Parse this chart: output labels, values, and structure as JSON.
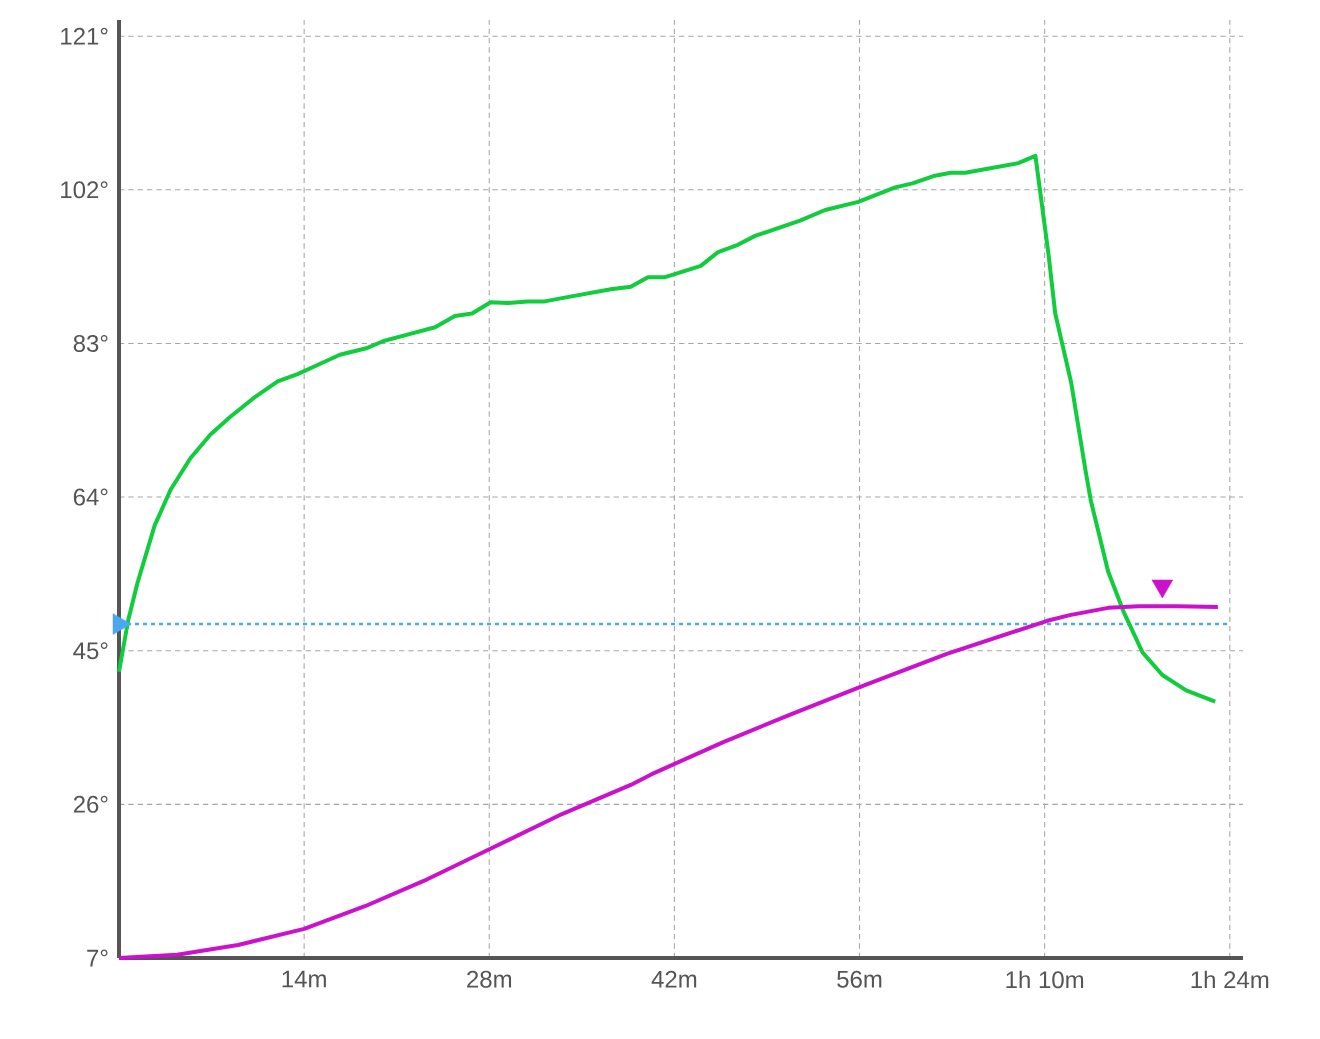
{
  "chart_data": {
    "type": "line",
    "x": [
      0,
      0.7,
      1.4,
      2.7,
      3.9,
      5.4,
      6.9,
      8.4,
      10.3,
      12.0,
      13.5,
      15.1,
      16.7,
      18.7,
      20.0,
      21.6,
      23.9,
      25.4,
      26.7,
      28.1,
      29.4,
      30.9,
      32.2,
      33.8,
      37.2,
      38.7,
      40.0,
      41.3,
      44.0,
      45.3,
      46.8,
      48.1,
      51.5,
      53.4,
      55.9,
      58.7,
      60.0,
      61.6,
      62.9,
      64.0,
      68.0,
      69.3,
      70.3,
      70.8,
      72.0,
      73.1,
      73.5,
      74.8,
      76.0,
      77.4,
      78.9,
      80.7,
      82.9
    ],
    "series": [
      {
        "type": "scatter",
        "marker": "triangle",
        "color": "#4da6f0",
        "x": [
          0
        ],
        "values": [
          48.3
        ]
      },
      {
        "color": "#11cc3c",
        "values": [
          42.4,
          48.8,
          53.4,
          60.5,
          64.9,
          68.8,
          71.7,
          73.9,
          76.4,
          78.3,
          79.2,
          80.4,
          81.6,
          82.4,
          83.3,
          84.0,
          85.0,
          86.4,
          86.7,
          88.1,
          88.0,
          88.2,
          88.2,
          88.7,
          89.7,
          90.0,
          91.2,
          91.2,
          92.6,
          94.3,
          95.2,
          96.3,
          98.2,
          99.5,
          100.5,
          102.3,
          102.8,
          103.7,
          104.1,
          104.1,
          105.3,
          106.2,
          93.9,
          86.7,
          78.2,
          67.2,
          63.5,
          54.8,
          49.7,
          44.8,
          42.0,
          40.1,
          38.7
        ]
      },
      {
        "color": "#cc11cc",
        "x": [
          0,
          4.4,
          9.0,
          14.0,
          18.6,
          23.0,
          28.2,
          33.5,
          38.7,
          40.5,
          45.7,
          50.9,
          56.5,
          62.6,
          70.2,
          71.9,
          74.8,
          77.1,
          80.1,
          83.1
        ],
        "values": [
          7,
          7.4,
          8.6,
          10.6,
          13.4,
          16.5,
          20.6,
          24.8,
          28.4,
          29.9,
          33.7,
          37.2,
          40.8,
          44.6,
          48.7,
          49.4,
          50.3,
          50.5,
          50.5,
          50.4
        ]
      },
      {
        "type": "scatter",
        "marker": "triangle",
        "color": "#cc11cc",
        "x": [
          78.9
        ],
        "values": [
          53.0
        ]
      }
    ],
    "ref_lines": [
      {
        "axis": "y",
        "value": 48.3,
        "color": "#4da6f0",
        "line_style": "dotted"
      }
    ],
    "xlim": [
      0,
      85
    ],
    "ylim": [
      7,
      123
    ],
    "xticks": [
      {
        "value": 14,
        "label": "14m"
      },
      {
        "value": 28,
        "label": "28m"
      },
      {
        "value": 42,
        "label": "42m"
      },
      {
        "value": 56,
        "label": "56m"
      },
      {
        "value": 70,
        "label": "1h 10m"
      },
      {
        "value": 84,
        "label": "1h 24m"
      }
    ],
    "yticks": [
      {
        "value": 7,
        "label": "7°"
      },
      {
        "value": 26,
        "label": "26°"
      },
      {
        "value": 45,
        "label": "45°"
      },
      {
        "value": 64,
        "label": "64°"
      },
      {
        "value": 83,
        "label": "83°"
      },
      {
        "value": 102,
        "label": "102°"
      },
      {
        "value": 121,
        "label": "121°"
      }
    ],
    "grid": true
  }
}
